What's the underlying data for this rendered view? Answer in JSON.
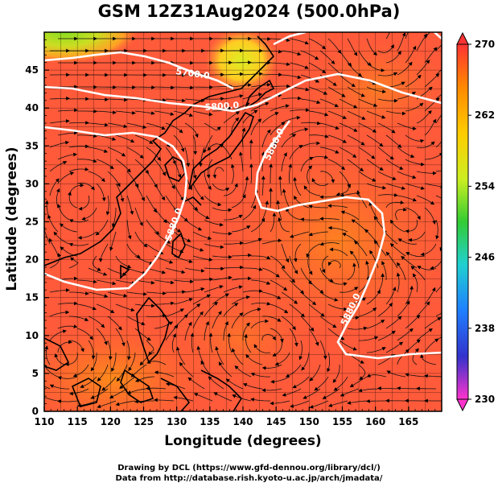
{
  "title": "GSM 12Z31Aug2024 (500.0hPa)",
  "xlabel": "Longitude (degrees)",
  "ylabel": "Latitude  (degrees)",
  "credit_line1": "Drawing by DCL (https://www.gfd-dennou.org/library/dcl/)",
  "credit_line2": "Data from http://database.rish.kyoto-u.ac.jp/arch/jmadata/",
  "chart_data": {
    "type": "heatmap",
    "variable": "temperature field with geopotential height contours and streamlines",
    "x_ticks": [
      "110",
      "115",
      "120",
      "125",
      "130",
      "135",
      "140",
      "145",
      "150",
      "155",
      "160",
      "165"
    ],
    "y_ticks": [
      "0",
      "5",
      "10",
      "15",
      "20",
      "25",
      "30",
      "35",
      "40",
      "45"
    ],
    "xlim": [
      110,
      170
    ],
    "ylim": [
      0,
      50
    ],
    "colorbar": {
      "ticks": [
        "230",
        "238",
        "246",
        "254",
        "262",
        "270"
      ],
      "range": [
        230,
        270
      ],
      "colors": [
        "#ff33cc",
        "#3333cc",
        "#1f7fff",
        "#20d0d0",
        "#33cc33",
        "#ccee22",
        "#ffcc00",
        "#ff8800",
        "#ff3333"
      ]
    },
    "contour_labels": [
      "5700.0",
      "5800.0",
      "5880.0",
      "5880.0",
      "5880.0"
    ],
    "grid": true
  }
}
